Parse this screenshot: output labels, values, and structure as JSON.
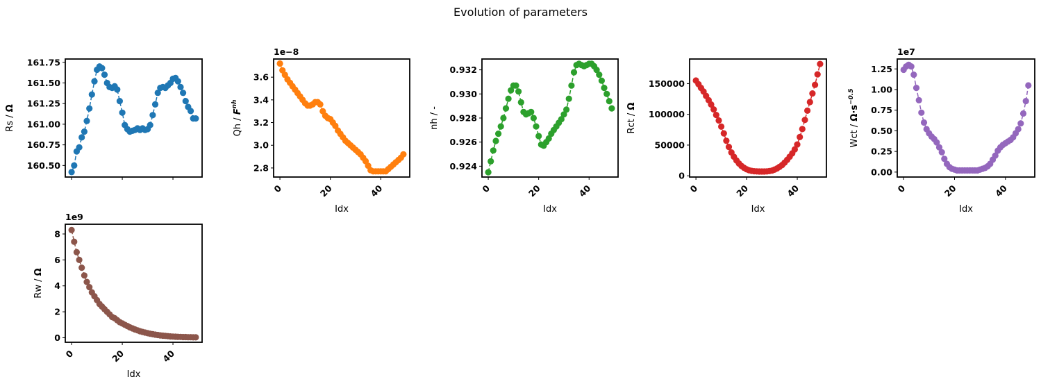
{
  "figure": {
    "title": "Evolution of parameters"
  },
  "chart_data": [
    {
      "type": "line",
      "color": "#1f77b4",
      "xlabel": "",
      "ylabel": "Rs / Ω",
      "ylim": [
        160.36,
        161.79
      ],
      "yticks": [
        "160.50",
        "160.75",
        "161.00",
        "161.25",
        "161.50",
        "161.75"
      ],
      "ytick_values": [
        160.5,
        160.75,
        161.0,
        161.25,
        161.5,
        161.75
      ],
      "xlim": [
        -2.5,
        51.5
      ],
      "xticks": [
        "0",
        "20",
        "40"
      ],
      "xtick_values": [
        0,
        20,
        40
      ],
      "show_xtick_labels": false,
      "offset_text": "",
      "x": [
        0,
        1,
        2,
        3,
        4,
        5,
        6,
        7,
        8,
        9,
        10,
        11,
        12,
        13,
        14,
        15,
        16,
        17,
        18,
        19,
        20,
        21,
        22,
        23,
        24,
        25,
        26,
        27,
        28,
        29,
        30,
        31,
        32,
        33,
        34,
        35,
        36,
        37,
        38,
        39,
        40,
        41,
        42,
        43,
        44,
        45,
        46,
        47,
        48,
        49
      ],
      "y": [
        160.42,
        160.5,
        160.67,
        160.72,
        160.84,
        160.91,
        161.04,
        161.19,
        161.36,
        161.52,
        161.66,
        161.7,
        161.68,
        161.6,
        161.5,
        161.45,
        161.44,
        161.46,
        161.42,
        161.28,
        161.14,
        160.99,
        160.94,
        160.91,
        160.92,
        160.93,
        160.95,
        160.93,
        160.95,
        160.93,
        160.94,
        160.99,
        161.11,
        161.24,
        161.38,
        161.44,
        161.45,
        161.44,
        161.47,
        161.5,
        161.55,
        161.56,
        161.52,
        161.45,
        161.38,
        161.28,
        161.21,
        161.16,
        161.07,
        161.07
      ]
    },
    {
      "type": "line",
      "color": "#ff7f0e",
      "xlabel": "Idx",
      "ylabel": "Qh / F^nh",
      "ylim": [
        2.72,
        3.76
      ],
      "yticks": [
        "2.8",
        "3.0",
        "3.2",
        "3.4",
        "3.6"
      ],
      "ytick_values": [
        2.8,
        3.0,
        3.2,
        3.4,
        3.6
      ],
      "xlim": [
        -2.5,
        51.5
      ],
      "xticks": [
        "0",
        "20",
        "40"
      ],
      "xtick_values": [
        0,
        20,
        40
      ],
      "show_xtick_labels": true,
      "offset_text": "1e−8",
      "x": [
        0,
        1,
        2,
        3,
        4,
        5,
        6,
        7,
        8,
        9,
        10,
        11,
        12,
        13,
        14,
        15,
        16,
        17,
        18,
        19,
        20,
        21,
        22,
        23,
        24,
        25,
        26,
        27,
        28,
        29,
        30,
        31,
        32,
        33,
        34,
        35,
        36,
        37,
        38,
        39,
        40,
        41,
        42,
        43,
        44,
        45,
        46,
        47,
        48,
        49
      ],
      "y": [
        3.72,
        3.66,
        3.62,
        3.58,
        3.55,
        3.52,
        3.49,
        3.46,
        3.43,
        3.4,
        3.37,
        3.35,
        3.35,
        3.36,
        3.38,
        3.38,
        3.36,
        3.3,
        3.26,
        3.24,
        3.23,
        3.2,
        3.17,
        3.13,
        3.1,
        3.07,
        3.04,
        3.02,
        3.0,
        2.98,
        2.96,
        2.94,
        2.92,
        2.89,
        2.86,
        2.82,
        2.78,
        2.77,
        2.77,
        2.77,
        2.77,
        2.77,
        2.77,
        2.79,
        2.81,
        2.83,
        2.85,
        2.87,
        2.89,
        2.92
      ]
    },
    {
      "type": "line",
      "color": "#2ca02c",
      "xlabel": "Idx",
      "ylabel": "nh / -",
      "ylim": [
        0.9231,
        0.9329
      ],
      "yticks": [
        "0.924",
        "0.926",
        "0.928",
        "0.930",
        "0.932"
      ],
      "ytick_values": [
        0.924,
        0.926,
        0.928,
        0.93,
        0.932
      ],
      "xlim": [
        -2.5,
        51.5
      ],
      "xticks": [
        "0",
        "20",
        "40"
      ],
      "xtick_values": [
        0,
        20,
        40
      ],
      "show_xtick_labels": true,
      "offset_text": "",
      "x": [
        0,
        1,
        2,
        3,
        4,
        5,
        6,
        7,
        8,
        9,
        10,
        11,
        12,
        13,
        14,
        15,
        16,
        17,
        18,
        19,
        20,
        21,
        22,
        23,
        24,
        25,
        26,
        27,
        28,
        29,
        30,
        31,
        32,
        33,
        34,
        35,
        36,
        37,
        38,
        39,
        40,
        41,
        42,
        43,
        44,
        45,
        46,
        47,
        48,
        49
      ],
      "y": [
        0.9235,
        0.9244,
        0.9253,
        0.9261,
        0.9267,
        0.9273,
        0.928,
        0.9288,
        0.9296,
        0.9303,
        0.9307,
        0.9307,
        0.9302,
        0.9293,
        0.9285,
        0.9283,
        0.9284,
        0.9285,
        0.928,
        0.9273,
        0.9265,
        0.9258,
        0.9257,
        0.926,
        0.9263,
        0.9267,
        0.927,
        0.9273,
        0.9276,
        0.9279,
        0.9283,
        0.9287,
        0.9296,
        0.9307,
        0.9318,
        0.9324,
        0.9325,
        0.9324,
        0.9323,
        0.9324,
        0.9325,
        0.9325,
        0.9323,
        0.932,
        0.9316,
        0.9311,
        0.9305,
        0.93,
        0.9294,
        0.9288
      ]
    },
    {
      "type": "line",
      "color": "#d62728",
      "xlabel": "Idx",
      "ylabel": "Rct / Ω",
      "ylim": [
        -2000,
        190000
      ],
      "yticks": [
        "0",
        "50000",
        "100000",
        "150000"
      ],
      "ytick_values": [
        0,
        50000,
        100000,
        150000
      ],
      "xlim": [
        -2.5,
        51.5
      ],
      "xticks": [
        "0",
        "20",
        "40"
      ],
      "xtick_values": [
        0,
        20,
        40
      ],
      "show_xtick_labels": true,
      "offset_text": "",
      "x": [
        0,
        1,
        2,
        3,
        4,
        5,
        6,
        7,
        8,
        9,
        10,
        11,
        12,
        13,
        14,
        15,
        16,
        17,
        18,
        19,
        20,
        21,
        22,
        23,
        24,
        25,
        26,
        27,
        28,
        29,
        30,
        31,
        32,
        33,
        34,
        35,
        36,
        37,
        38,
        39,
        40,
        41,
        42,
        43,
        44,
        45,
        46,
        47,
        48,
        49
      ],
      "y": [
        155000,
        149000,
        143000,
        137000,
        130000,
        123000,
        116000,
        108000,
        99000,
        90000,
        80000,
        69000,
        57000,
        47000,
        38000,
        31000,
        25000,
        20000,
        16000,
        13000,
        10500,
        9000,
        8000,
        7500,
        7200,
        7000,
        7000,
        7000,
        7200,
        7700,
        8500,
        10000,
        12000,
        14500,
        17500,
        21500,
        26000,
        31000,
        36500,
        43000,
        51000,
        63000,
        76000,
        91000,
        106000,
        120000,
        134000,
        148000,
        165000,
        182000
      ]
    },
    {
      "type": "line",
      "color": "#9467bd",
      "xlabel": "Idx",
      "ylabel": "Wct / Ω·s^−0.5",
      "ylim": [
        -0.06,
        1.37
      ],
      "yticks": [
        "0.00",
        "0.25",
        "0.50",
        "0.75",
        "1.00",
        "1.25"
      ],
      "ytick_values": [
        0,
        0.25,
        0.5,
        0.75,
        1.0,
        1.25
      ],
      "xlim": [
        -2.5,
        51.5
      ],
      "xticks": [
        "0",
        "20",
        "40"
      ],
      "xtick_values": [
        0,
        20,
        40
      ],
      "show_xtick_labels": true,
      "offset_text": "1e7",
      "x": [
        0,
        1,
        2,
        3,
        4,
        5,
        6,
        7,
        8,
        9,
        10,
        11,
        12,
        13,
        14,
        15,
        16,
        17,
        18,
        19,
        20,
        21,
        22,
        23,
        24,
        25,
        26,
        27,
        28,
        29,
        30,
        31,
        32,
        33,
        34,
        35,
        36,
        37,
        38,
        39,
        40,
        41,
        42,
        43,
        44,
        45,
        46,
        47,
        48,
        49
      ],
      "y": [
        1.24,
        1.28,
        1.3,
        1.28,
        1.18,
        1.02,
        0.87,
        0.72,
        0.6,
        0.52,
        0.47,
        0.43,
        0.4,
        0.36,
        0.3,
        0.24,
        0.16,
        0.1,
        0.06,
        0.04,
        0.03,
        0.02,
        0.02,
        0.02,
        0.02,
        0.02,
        0.02,
        0.02,
        0.02,
        0.02,
        0.03,
        0.04,
        0.05,
        0.07,
        0.1,
        0.15,
        0.2,
        0.26,
        0.3,
        0.33,
        0.35,
        0.37,
        0.39,
        0.42,
        0.47,
        0.52,
        0.59,
        0.71,
        0.86,
        1.05
      ]
    },
    {
      "type": "line",
      "color": "#8c564b",
      "xlabel": "Idx",
      "ylabel": "Rw / Ω",
      "ylim": [
        -0.35,
        8.75
      ],
      "yticks": [
        "0",
        "2",
        "4",
        "6",
        "8"
      ],
      "ytick_values": [
        0,
        2,
        4,
        6,
        8
      ],
      "xlim": [
        -2.5,
        51.5
      ],
      "xticks": [
        "0",
        "20",
        "40"
      ],
      "xtick_values": [
        0,
        20,
        40
      ],
      "show_xtick_labels": true,
      "offset_text": "1e9",
      "x": [
        0,
        1,
        2,
        3,
        4,
        5,
        6,
        7,
        8,
        9,
        10,
        11,
        12,
        13,
        14,
        15,
        16,
        17,
        18,
        19,
        20,
        21,
        22,
        23,
        24,
        25,
        26,
        27,
        28,
        29,
        30,
        31,
        32,
        33,
        34,
        35,
        36,
        37,
        38,
        39,
        40,
        41,
        42,
        43,
        44,
        45,
        46,
        47,
        48,
        49
      ],
      "y": [
        8.3,
        7.4,
        6.6,
        6.0,
        5.4,
        4.8,
        4.3,
        3.9,
        3.5,
        3.2,
        2.9,
        2.6,
        2.4,
        2.2,
        2.0,
        1.8,
        1.6,
        1.5,
        1.35,
        1.2,
        1.1,
        1.0,
        0.9,
        0.8,
        0.72,
        0.64,
        0.57,
        0.5,
        0.45,
        0.4,
        0.35,
        0.31,
        0.27,
        0.24,
        0.21,
        0.18,
        0.16,
        0.14,
        0.12,
        0.1,
        0.09,
        0.08,
        0.07,
        0.06,
        0.05,
        0.05,
        0.04,
        0.04,
        0.03,
        0.03
      ]
    }
  ]
}
